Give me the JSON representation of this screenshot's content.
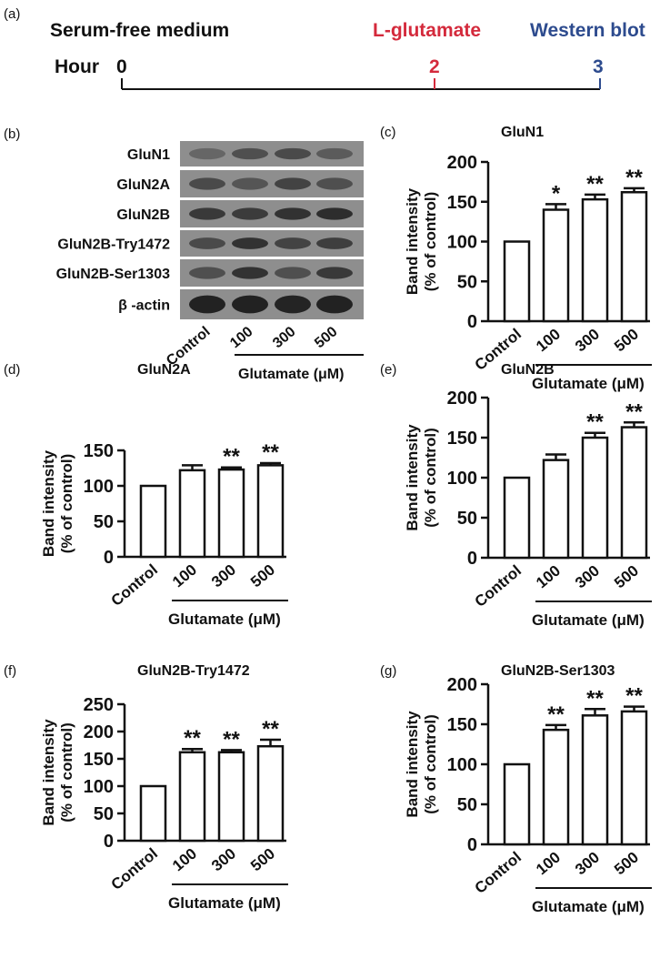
{
  "panel_a": {
    "label": "(a)",
    "medium": "Serum-free medium",
    "treatment": "L-glutamate",
    "assay": "Western blot",
    "hour_label": "Hour",
    "t0": "0",
    "t_treatment": "2",
    "t_assay": "3",
    "colors": {
      "treatment": "#d42a3c",
      "assay": "#2d4b8e",
      "text": "#111111"
    }
  },
  "panel_b": {
    "label": "(b)",
    "rows": [
      "GluN1",
      "GluN2A",
      "GluN2B",
      "GluN2B-Try1472",
      "GluN2B-Ser1303",
      "β -actin"
    ],
    "lanes": [
      "Control",
      "100",
      "300",
      "500"
    ],
    "group_label": "Glutamate (μM)"
  },
  "chart_data": [
    {
      "panel": "(c)",
      "type": "bar",
      "title": "GluN1",
      "ylabel": "Band intensity (% of control)",
      "xlabel": "Glutamate (μM)",
      "categories": [
        "Control",
        "100",
        "300",
        "500"
      ],
      "values": [
        100,
        140,
        153,
        162
      ],
      "errors": [
        0,
        7,
        6,
        5
      ],
      "significance": [
        "",
        "*",
        "**",
        "**"
      ],
      "ylim": [
        0,
        200
      ],
      "yticks": [
        0,
        50,
        100,
        150,
        200
      ],
      "grid": false
    },
    {
      "panel": "(d)",
      "type": "bar",
      "title": "GluN2A",
      "ylabel": "Band intensity (% of control)",
      "xlabel": "Glutamate (μM)",
      "categories": [
        "Control",
        "100",
        "300",
        "500"
      ],
      "values": [
        100,
        122,
        123,
        129
      ],
      "errors": [
        0,
        7,
        3,
        3
      ],
      "significance": [
        "",
        "",
        "**",
        "**"
      ],
      "ylim": [
        0,
        150
      ],
      "yticks": [
        0,
        50,
        100,
        150
      ],
      "grid": false
    },
    {
      "panel": "(e)",
      "type": "bar",
      "title": "GluN2B",
      "ylabel": "Band intensity (% of control)",
      "xlabel": "Glutamate (μM)",
      "categories": [
        "Control",
        "100",
        "300",
        "500"
      ],
      "values": [
        100,
        122,
        150,
        163
      ],
      "errors": [
        0,
        7,
        6,
        6
      ],
      "significance": [
        "",
        "",
        "**",
        "**"
      ],
      "ylim": [
        0,
        200
      ],
      "yticks": [
        0,
        50,
        100,
        150,
        200
      ],
      "grid": false
    },
    {
      "panel": "(f)",
      "type": "bar",
      "title": "GluN2B-Try1472",
      "ylabel": "Band intensity (% of control)",
      "xlabel": "Glutamate (μM)",
      "categories": [
        "Control",
        "100",
        "300",
        "500"
      ],
      "values": [
        100,
        162,
        162,
        173
      ],
      "errors": [
        0,
        6,
        4,
        12
      ],
      "significance": [
        "",
        "**",
        "**",
        "**"
      ],
      "ylim": [
        0,
        250
      ],
      "yticks": [
        0,
        50,
        100,
        150,
        200,
        250
      ],
      "grid": false
    },
    {
      "panel": "(g)",
      "type": "bar",
      "title": "GluN2B-Ser1303",
      "ylabel": "Band intensity (% of control)",
      "xlabel": "Glutamate (μM)",
      "categories": [
        "Control",
        "100",
        "300",
        "500"
      ],
      "values": [
        100,
        143,
        161,
        166
      ],
      "errors": [
        0,
        6,
        8,
        6
      ],
      "significance": [
        "",
        "**",
        "**",
        "**"
      ],
      "ylim": [
        0,
        200
      ],
      "yticks": [
        0,
        50,
        100,
        150,
        200
      ],
      "grid": false
    }
  ]
}
